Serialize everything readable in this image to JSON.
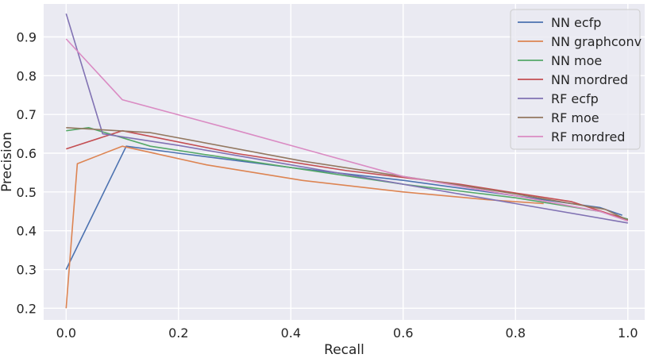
{
  "chart_data": {
    "type": "line",
    "title": "",
    "xlabel": "Recall",
    "ylabel": "Precision",
    "xlim": [
      -0.04,
      1.03
    ],
    "ylim": [
      0.17,
      0.985
    ],
    "xticks": [
      "0.0",
      "0.2",
      "0.4",
      "0.6",
      "0.8",
      "1.0"
    ],
    "yticks": [
      "0.2",
      "0.3",
      "0.4",
      "0.5",
      "0.6",
      "0.7",
      "0.8",
      "0.9"
    ],
    "grid": true,
    "legend_position": "top-right",
    "colors": {
      "background": "#eaeaf2",
      "grid": "#ffffff",
      "text": "#262626"
    },
    "series": [
      {
        "name": "NN ecfp",
        "color": "#4c72b0",
        "x": [
          0.0,
          0.107,
          0.2,
          0.4,
          0.6,
          0.8,
          0.95,
          0.99
        ],
        "y": [
          0.3,
          0.618,
          0.6,
          0.563,
          0.53,
          0.49,
          0.46,
          0.44
        ]
      },
      {
        "name": "NN graphconv",
        "color": "#dd8452",
        "x": [
          0.0,
          0.02,
          0.1,
          0.25,
          0.42,
          0.6,
          0.75,
          0.85
        ],
        "y": [
          0.2,
          0.573,
          0.618,
          0.57,
          0.53,
          0.5,
          0.48,
          0.47
        ]
      },
      {
        "name": "NN moe",
        "color": "#55a868",
        "x": [
          0.0,
          0.04,
          0.15,
          0.4,
          0.6,
          0.8,
          0.95,
          1.0
        ],
        "y": [
          0.658,
          0.666,
          0.618,
          0.563,
          0.52,
          0.485,
          0.45,
          0.43
        ]
      },
      {
        "name": "NN mordred",
        "color": "#c44e52",
        "x": [
          0.0,
          0.1,
          0.3,
          0.5,
          0.7,
          0.9,
          1.0
        ],
        "y": [
          0.611,
          0.658,
          0.6,
          0.555,
          0.52,
          0.475,
          0.428
        ]
      },
      {
        "name": "RF ecfp",
        "color": "#8172b3",
        "x": [
          0.0,
          0.065,
          0.2,
          0.4,
          0.6,
          0.8,
          1.0
        ],
        "y": [
          0.96,
          0.65,
          0.62,
          0.57,
          0.52,
          0.47,
          0.42
        ]
      },
      {
        "name": "RF moe",
        "color": "#937860",
        "x": [
          0.0,
          0.15,
          0.42,
          0.6,
          0.8,
          0.96,
          1.0
        ],
        "y": [
          0.666,
          0.653,
          0.58,
          0.54,
          0.495,
          0.455,
          0.427
        ]
      },
      {
        "name": "RF mordred",
        "color": "#da8bc3",
        "x": [
          0.0,
          0.1,
          0.3,
          0.6,
          0.8,
          0.95,
          1.0
        ],
        "y": [
          0.895,
          0.738,
          0.66,
          0.54,
          0.49,
          0.45,
          0.425
        ]
      }
    ]
  }
}
